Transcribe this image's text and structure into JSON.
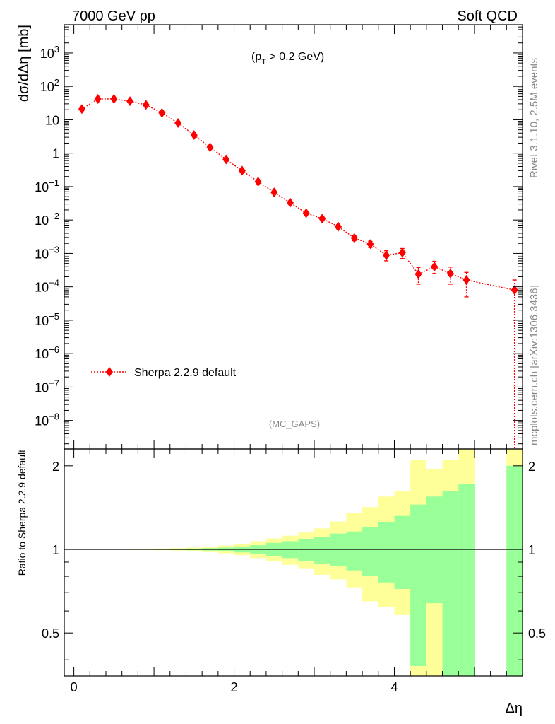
{
  "header": {
    "left": "7000 GeV pp",
    "right": "Soft QCD"
  },
  "side_labels": {
    "rivet": "Rivet 3.1.10,  2.5M events",
    "mcplots": "mcplots.cern.ch [arXiv:1306.3436]"
  },
  "chart_data": [
    {
      "type": "scatter",
      "title": "",
      "cut_label_prefix": "(p",
      "cut_label_sub": "T",
      "cut_label_suffix": " > 0.2 GeV)",
      "analysis_tag": "(MC_GAPS)",
      "ylabel": "dσ/dΔη [mb]",
      "yscale": "log",
      "xlim": [
        -0.12,
        5.6
      ],
      "ylim": [
        1.4e-09,
        7000
      ],
      "x_ticks": [
        "0",
        "2",
        "4"
      ],
      "y_ticks": [
        "10^-8",
        "10^-7",
        "10^-6",
        "10^-5",
        "10^-4",
        "10^-3",
        "10^-2",
        "10^-1",
        "1",
        "10",
        "10^2",
        "10^3"
      ],
      "legend": {
        "label": "Sherpa 2.2.9 default",
        "placement": "bottom-left"
      },
      "series": [
        {
          "name": "Sherpa 2.2.9 default",
          "color": "#ff0000",
          "marker": "diamond",
          "line": "dotted",
          "x": [
            0.1,
            0.3,
            0.5,
            0.7,
            0.9,
            1.1,
            1.3,
            1.5,
            1.7,
            1.9,
            2.1,
            2.3,
            2.5,
            2.7,
            2.9,
            3.1,
            3.3,
            3.5,
            3.7,
            3.9,
            4.1,
            4.3,
            4.5,
            4.7,
            4.9,
            5.5
          ],
          "y": [
            21,
            42,
            42,
            36,
            28,
            16,
            8,
            3.5,
            1.5,
            0.65,
            0.3,
            0.14,
            0.067,
            0.033,
            0.016,
            0.011,
            0.0063,
            0.0029,
            0.0019,
            0.00088,
            0.00105,
            0.00024,
            0.0004,
            0.00025,
            0.00016,
            8e-05
          ],
          "ylo": [
            null,
            null,
            null,
            null,
            null,
            null,
            null,
            null,
            null,
            null,
            null,
            null,
            null,
            null,
            null,
            0.0095,
            0.0054,
            0.0024,
            0.0015,
            0.0006,
            0.0007,
            0.00012,
            0.00025,
            0.00012,
            5e-05,
            1e-12
          ],
          "yhi": [
            null,
            null,
            null,
            null,
            null,
            null,
            null,
            null,
            null,
            null,
            null,
            null,
            null,
            null,
            null,
            0.0125,
            0.0072,
            0.0034,
            0.0023,
            0.0012,
            0.0014,
            0.00038,
            0.00058,
            0.00039,
            0.00027,
            0.00016
          ]
        }
      ]
    },
    {
      "type": "area",
      "ylabel": "Ratio to Sherpa 2.2.9 default",
      "xlabel": "Δη",
      "xlim": [
        -0.12,
        5.6
      ],
      "ylim": [
        0.35,
        2.3
      ],
      "x_ticks": [
        "0",
        "2",
        "4"
      ],
      "y_ticks": [
        "0.5",
        "1",
        "2"
      ],
      "reference_line": 1,
      "colors": {
        "green": "#99ff99",
        "yellow": "#ffff99"
      },
      "bands": {
        "x_edges": [
          0,
          0.2,
          0.4,
          0.6,
          0.8,
          1.0,
          1.2,
          1.4,
          1.6,
          1.8,
          2.0,
          2.2,
          2.4,
          2.6,
          2.8,
          3.0,
          3.2,
          3.4,
          3.6,
          3.8,
          4.0,
          4.2,
          4.4,
          4.6,
          4.8,
          5.0
        ],
        "green_lo": [
          0.999,
          0.999,
          0.999,
          0.998,
          0.997,
          0.996,
          0.995,
          0.993,
          0.99,
          0.985,
          0.975,
          0.965,
          0.945,
          0.93,
          0.91,
          0.89,
          0.87,
          0.84,
          0.8,
          0.76,
          0.72,
          0.38,
          0.64,
          0.35,
          0.35
        ],
        "green_hi": [
          1.001,
          1.001,
          1.001,
          1.002,
          1.003,
          1.004,
          1.005,
          1.007,
          1.01,
          1.015,
          1.025,
          1.035,
          1.055,
          1.07,
          1.09,
          1.11,
          1.14,
          1.16,
          1.2,
          1.25,
          1.32,
          1.45,
          1.55,
          1.62,
          1.72
        ],
        "yellow_lo": [
          0.998,
          0.998,
          0.997,
          0.996,
          0.995,
          0.993,
          0.99,
          0.985,
          0.978,
          0.968,
          0.953,
          0.93,
          0.905,
          0.88,
          0.85,
          0.81,
          0.78,
          0.73,
          0.65,
          0.62,
          0.58,
          0.35,
          0.35,
          0.35,
          0.35
        ],
        "yellow_hi": [
          1.002,
          1.002,
          1.003,
          1.004,
          1.005,
          1.007,
          1.01,
          1.015,
          1.022,
          1.032,
          1.047,
          1.07,
          1.095,
          1.12,
          1.15,
          1.19,
          1.26,
          1.35,
          1.42,
          1.55,
          1.62,
          2.1,
          1.95,
          2.1,
          2.3
        ],
        "extra": {
          "x0": 5.4,
          "x1": 5.6,
          "green_lo": 0.35,
          "green_hi": 2.0,
          "yellow_lo": 0.35,
          "yellow_hi": 2.3
        }
      }
    }
  ]
}
